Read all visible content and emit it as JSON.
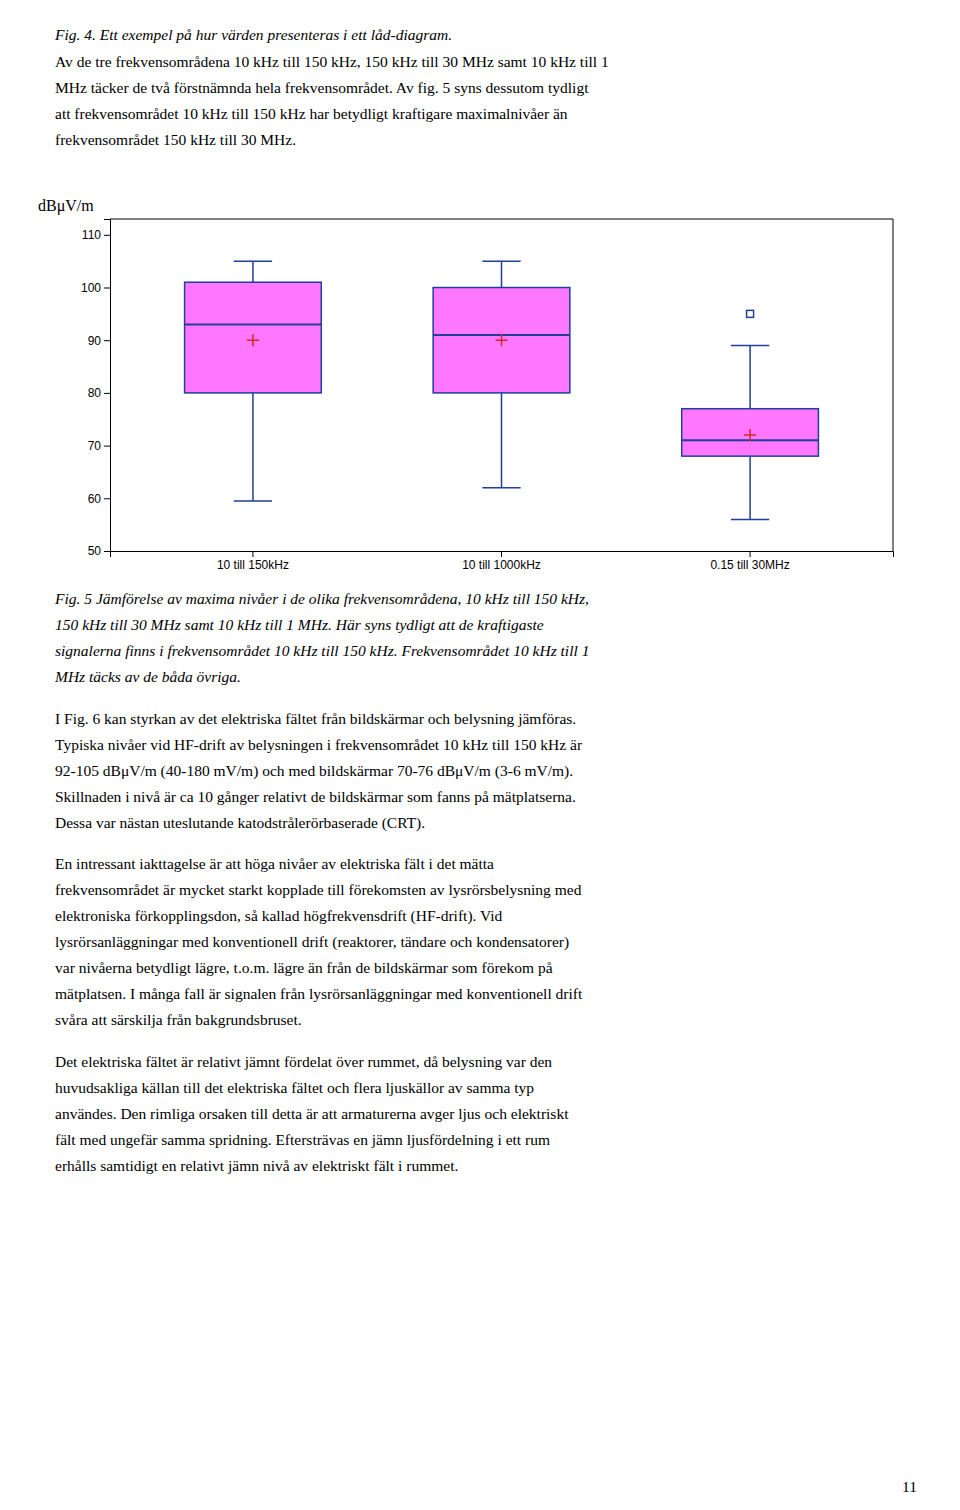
{
  "chart_data": {
    "type": "box",
    "ylabel": "dBμV/m",
    "categories": [
      "10 till 150kHz",
      "10 till 1000kHz",
      "0.15 till 30MHz"
    ],
    "boxes": [
      {
        "whislo": 59.5,
        "q1": 80.0,
        "med": 93.0,
        "q3": 101.0,
        "whishi": 105.0,
        "mean": 90.0,
        "fliers": []
      },
      {
        "whislo": 62.0,
        "q1": 80.0,
        "med": 91.0,
        "q3": 100.0,
        "whishi": 105.0,
        "mean": 90.0,
        "fliers": []
      },
      {
        "whislo": 56.0,
        "q1": 68.0,
        "med": 71.0,
        "q3": 77.0,
        "whishi": 89.0,
        "mean": 72.0,
        "fliers": [
          95.0
        ]
      }
    ],
    "color": "#FF77FF",
    "ylim": [
      50,
      113
    ],
    "yticks": [
      50,
      60,
      70,
      80,
      90,
      100,
      110
    ],
    "grid": false
  },
  "text_before_chart": [
    {
      "kind": "caption",
      "lines": [
        "Fig. 4. Ett exempel på hur värden presenteras i ett låd-diagram."
      ]
    },
    {
      "kind": "paragraph",
      "lines": [
        "Av de tre frekvensområdena 10 kHz till 150 kHz, 150 kHz till 30 MHz samt 10 kHz till 1",
        "MHz täcker de två förstnämnda hela frekvensområdet. Av fig. 5 syns dessutom tydligt",
        "att frekvensområdet 10 kHz till 150 kHz har betydligt kraftigare maximalnivåer än",
        "frekvensområdet 150 kHz till 30 MHz."
      ]
    }
  ],
  "text_after_chart": [
    {
      "kind": "caption",
      "lines": [
        "Fig. 5 Jämförelse av maxima nivåer i de olika frekvensområdena, 10 kHz till 150 kHz,",
        "150 kHz till 30 MHz samt 10 kHz till 1 MHz. Här syns tydligt att de kraftigaste",
        "signalerna finns i frekvensområdet 10 kHz till 150 kHz. Frekvensområdet 10 kHz till 1",
        "MHz täcks av de båda övriga."
      ]
    },
    {
      "kind": "paragraph",
      "lines": [
        "I Fig. 6 kan styrkan av det elektriska fältet från bildskärmar och belysning jämföras.",
        "Typiska nivåer vid HF-drift av belysningen i frekvensområdet 10 kHz till 150 kHz är",
        "92-105 dBμV/m (40-180 mV/m) och med bildskärmar 70-76 dBμV/m (3-6 mV/m).",
        "Skillnaden i nivå är ca 10 gånger relativt de bildskärmar som fanns på mätplatserna.",
        "Dessa var nästan uteslutande katodstrålerörbaserade (CRT)."
      ]
    },
    {
      "kind": "paragraph",
      "lines": [
        "En intressant iakttagelse är att höga nivåer av elektriska fält i det mätta",
        "frekvensområdet är mycket starkt kopplade till förekomsten av lysrörsbelysning med",
        "elektroniska förkopplingsdon, så kallad högfrekvensdrift (HF-drift). Vid",
        "lysrörsanläggningar med konventionell drift (reaktorer, tändare och kondensatorer)",
        "var nivåerna betydligt lägre, t.o.m. lägre än från de bildskärmar som förekom på",
        "mätplatsen. I många fall är signalen från lysrörsanläggningar med konventionell drift",
        "svåra att särskilja från bakgrundsbruset."
      ]
    },
    {
      "kind": "paragraph",
      "lines": [
        "Det elektriska fältet är relativt jämnt fördelat över rummet, då belysning var den",
        "huvudsakliga källan till det elektriska fältet och flera ljuskällor av samma typ",
        "användes. Den rimliga orsaken till detta är att armaturerna avger ljus och elektriskt",
        "fält med ungefär samma spridning. Eftersträvas en jämn ljusfördelning i ett rum",
        "erhålls samtidigt en relativt jämn nivå av elektriskt fält i rummet."
      ]
    }
  ],
  "page_number": "11"
}
